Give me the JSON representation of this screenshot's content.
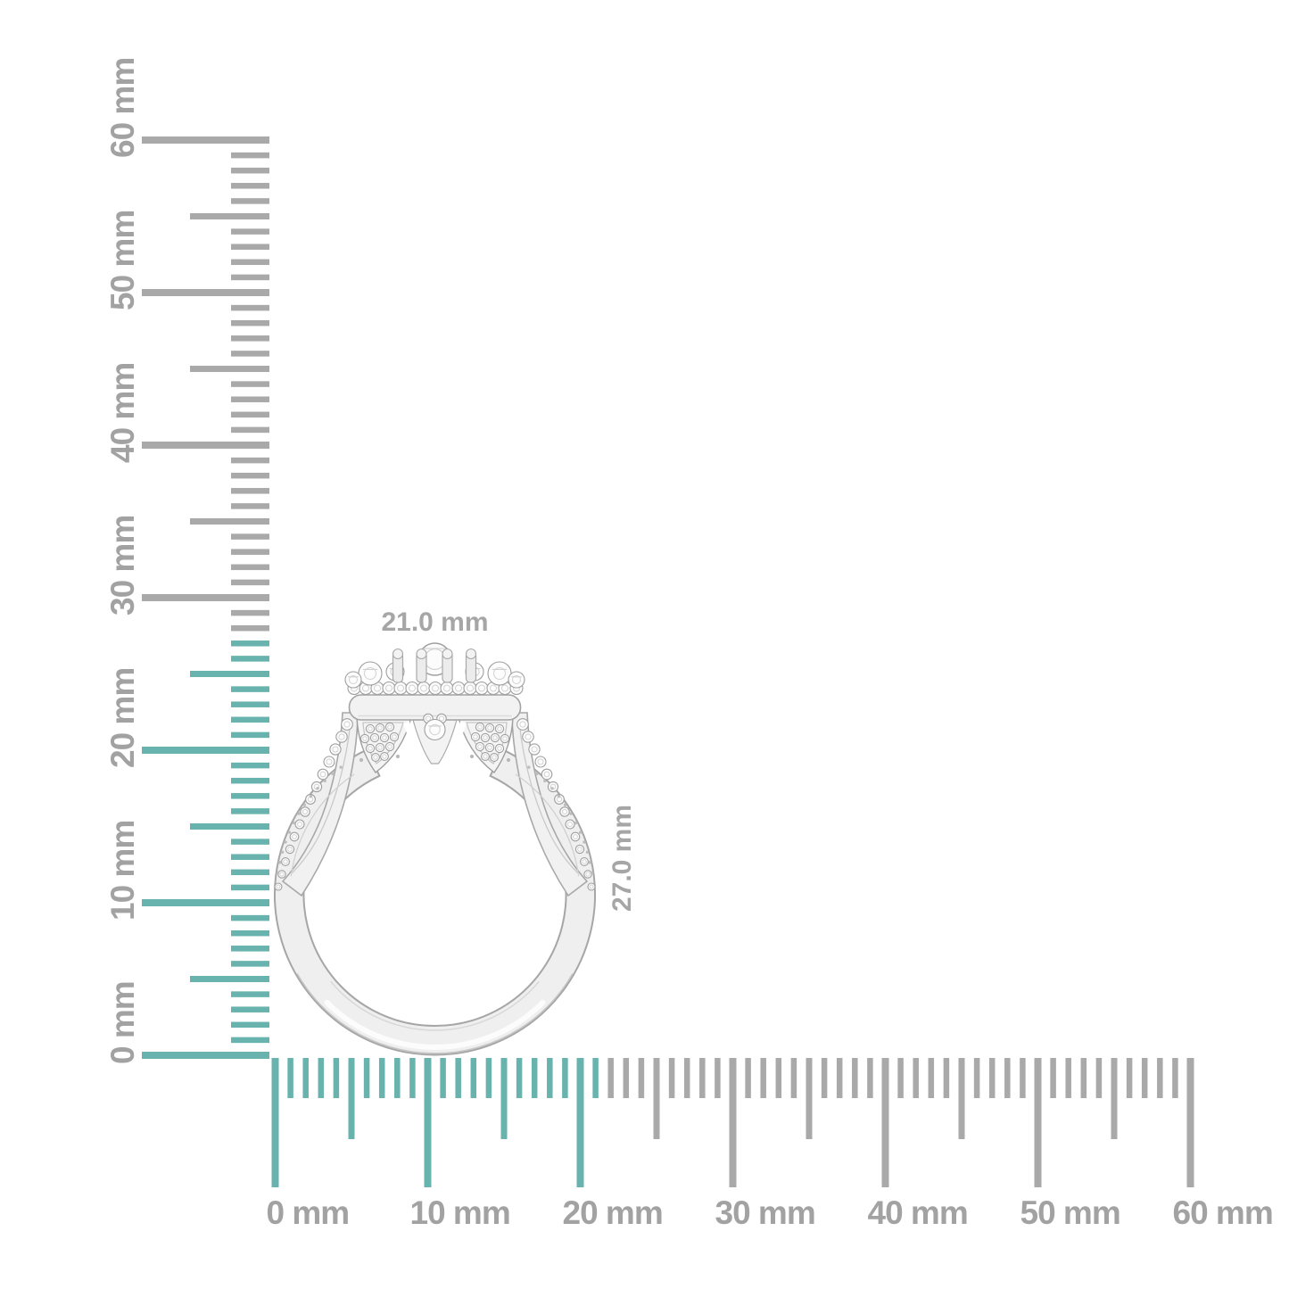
{
  "page": {
    "background": "#ffffff",
    "description_label": "product dimension diagram"
  },
  "colors": {
    "measured_highlight_teal": "#68b3ad",
    "tick_gray": "#a9a9a9",
    "ruler_label_gray": "#a2a2a2",
    "dimension_label_gray": "#a6a6a6",
    "metal_fill": "#efefef",
    "metal_outline": "#a6a6a6"
  },
  "rulers": {
    "unit": "mm",
    "vertical": {
      "min_mm": 0,
      "max_mm": 60,
      "minor_step_mm": 1,
      "medium_step_mm": 5,
      "major_step_mm": 10,
      "highlighted_span_mm": 27,
      "labels": [
        {
          "mm": 0,
          "text": "0 mm"
        },
        {
          "mm": 10,
          "text": "10 mm"
        },
        {
          "mm": 20,
          "text": "20 mm"
        },
        {
          "mm": 30,
          "text": "30 mm"
        },
        {
          "mm": 40,
          "text": "40 mm"
        },
        {
          "mm": 50,
          "text": "50 mm"
        },
        {
          "mm": 60,
          "text": "60 mm"
        }
      ]
    },
    "horizontal": {
      "min_mm": 0,
      "max_mm": 60,
      "minor_step_mm": 1,
      "medium_step_mm": 5,
      "major_step_mm": 10,
      "highlighted_span_mm": 21,
      "labels": [
        {
          "mm": 0,
          "text": "0 mm"
        },
        {
          "mm": 10,
          "text": "10 mm"
        },
        {
          "mm": 20,
          "text": "20 mm"
        },
        {
          "mm": 30,
          "text": "30 mm"
        },
        {
          "mm": 40,
          "text": "40 mm"
        },
        {
          "mm": 50,
          "text": "50 mm"
        },
        {
          "mm": 60,
          "text": "60 mm"
        }
      ]
    }
  },
  "measurement": {
    "width_label": "21.0 mm",
    "height_label": "27.0 mm",
    "width_mm": 21.0,
    "height_mm": 27.0
  },
  "figure": {
    "subject_icon": "diamond-ring-side-view-icon"
  }
}
